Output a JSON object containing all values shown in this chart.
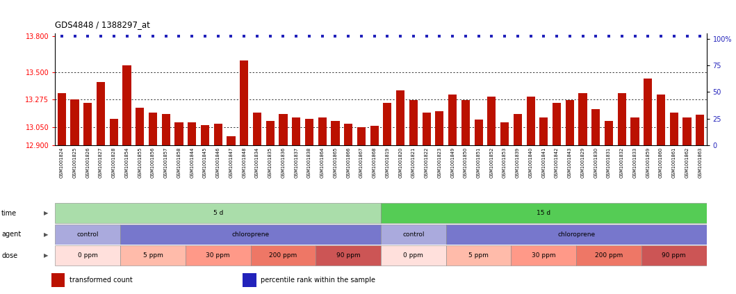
{
  "title": "GDS4848 / 1388297_at",
  "samples": [
    "GSM1001824",
    "GSM1001825",
    "GSM1001826",
    "GSM1001827",
    "GSM1001828",
    "GSM1001854",
    "GSM1001855",
    "GSM1001856",
    "GSM1001857",
    "GSM1001858",
    "GSM1001844",
    "GSM1001845",
    "GSM1001846",
    "GSM1001847",
    "GSM1001848",
    "GSM1001834",
    "GSM1001835",
    "GSM1001836",
    "GSM1001837",
    "GSM1001838",
    "GSM1001864",
    "GSM1001865",
    "GSM1001866",
    "GSM1001867",
    "GSM1001868",
    "GSM1001819",
    "GSM1001820",
    "GSM1001821",
    "GSM1001822",
    "GSM1001823",
    "GSM1001849",
    "GSM1001850",
    "GSM1001851",
    "GSM1001852",
    "GSM1001853",
    "GSM1001839",
    "GSM1001840",
    "GSM1001841",
    "GSM1001842",
    "GSM1001843",
    "GSM1001829",
    "GSM1001830",
    "GSM1001831",
    "GSM1001832",
    "GSM1001833",
    "GSM1001859",
    "GSM1001860",
    "GSM1001861",
    "GSM1001862",
    "GSM1001863"
  ],
  "bar_values": [
    13.33,
    13.28,
    13.25,
    13.42,
    13.12,
    13.56,
    13.21,
    13.17,
    13.16,
    13.09,
    13.09,
    13.065,
    13.075,
    12.975,
    13.6,
    13.17,
    13.1,
    13.16,
    13.13,
    13.12,
    13.13,
    13.1,
    13.08,
    13.05,
    13.06,
    13.25,
    13.35,
    13.27,
    13.17,
    13.18,
    13.32,
    13.27,
    13.11,
    13.3,
    13.09,
    13.16,
    13.3,
    13.13,
    13.25,
    13.27,
    13.33,
    13.2,
    13.1,
    13.33,
    13.13,
    13.45,
    13.32,
    13.17,
    13.13,
    13.15
  ],
  "percentile_value": 13.8,
  "ylim_left": [
    12.9,
    13.82
  ],
  "ylim_right": [
    0,
    105
  ],
  "yticks_left": [
    12.9,
    13.05,
    13.275,
    13.5,
    13.8
  ],
  "yticks_right": [
    0,
    25,
    50,
    75,
    100
  ],
  "ytick_labels_right": [
    "0",
    "25",
    "50",
    "75",
    "100%"
  ],
  "grid_values": [
    13.05,
    13.275,
    13.5
  ],
  "bar_color": "#BB1100",
  "percentile_color": "#2222BB",
  "background_color": "#ffffff",
  "xticklabel_bg": "#DDDDDD",
  "time_groups": [
    {
      "label": "5 d",
      "start": 0,
      "end": 25,
      "color": "#AADDAA"
    },
    {
      "label": "15 d",
      "start": 25,
      "end": 50,
      "color": "#55CC55"
    }
  ],
  "agent_groups": [
    {
      "label": "control",
      "start": 0,
      "end": 5,
      "color": "#AAAADD"
    },
    {
      "label": "chloroprene",
      "start": 5,
      "end": 25,
      "color": "#7777CC"
    },
    {
      "label": "control",
      "start": 25,
      "end": 30,
      "color": "#AAAADD"
    },
    {
      "label": "chloroprene",
      "start": 30,
      "end": 50,
      "color": "#7777CC"
    }
  ],
  "dose_groups": [
    {
      "label": "0 ppm",
      "start": 0,
      "end": 5,
      "color": "#FFE0DC"
    },
    {
      "label": "5 ppm",
      "start": 5,
      "end": 10,
      "color": "#FFBBAA"
    },
    {
      "label": "30 ppm",
      "start": 10,
      "end": 15,
      "color": "#FF9988"
    },
    {
      "label": "200 ppm",
      "start": 15,
      "end": 20,
      "color": "#EE7766"
    },
    {
      "label": "90 ppm",
      "start": 20,
      "end": 25,
      "color": "#CC5555"
    },
    {
      "label": "0 ppm",
      "start": 25,
      "end": 30,
      "color": "#FFE0DC"
    },
    {
      "label": "5 ppm",
      "start": 30,
      "end": 35,
      "color": "#FFBBAA"
    },
    {
      "label": "30 ppm",
      "start": 35,
      "end": 40,
      "color": "#FF9988"
    },
    {
      "label": "200 ppm",
      "start": 40,
      "end": 45,
      "color": "#EE7766"
    },
    {
      "label": "90 ppm",
      "start": 45,
      "end": 50,
      "color": "#CC5555"
    }
  ],
  "legend_items": [
    {
      "label": "transformed count",
      "color": "#BB1100"
    },
    {
      "label": "percentile rank within the sample",
      "color": "#2222BB"
    }
  ]
}
